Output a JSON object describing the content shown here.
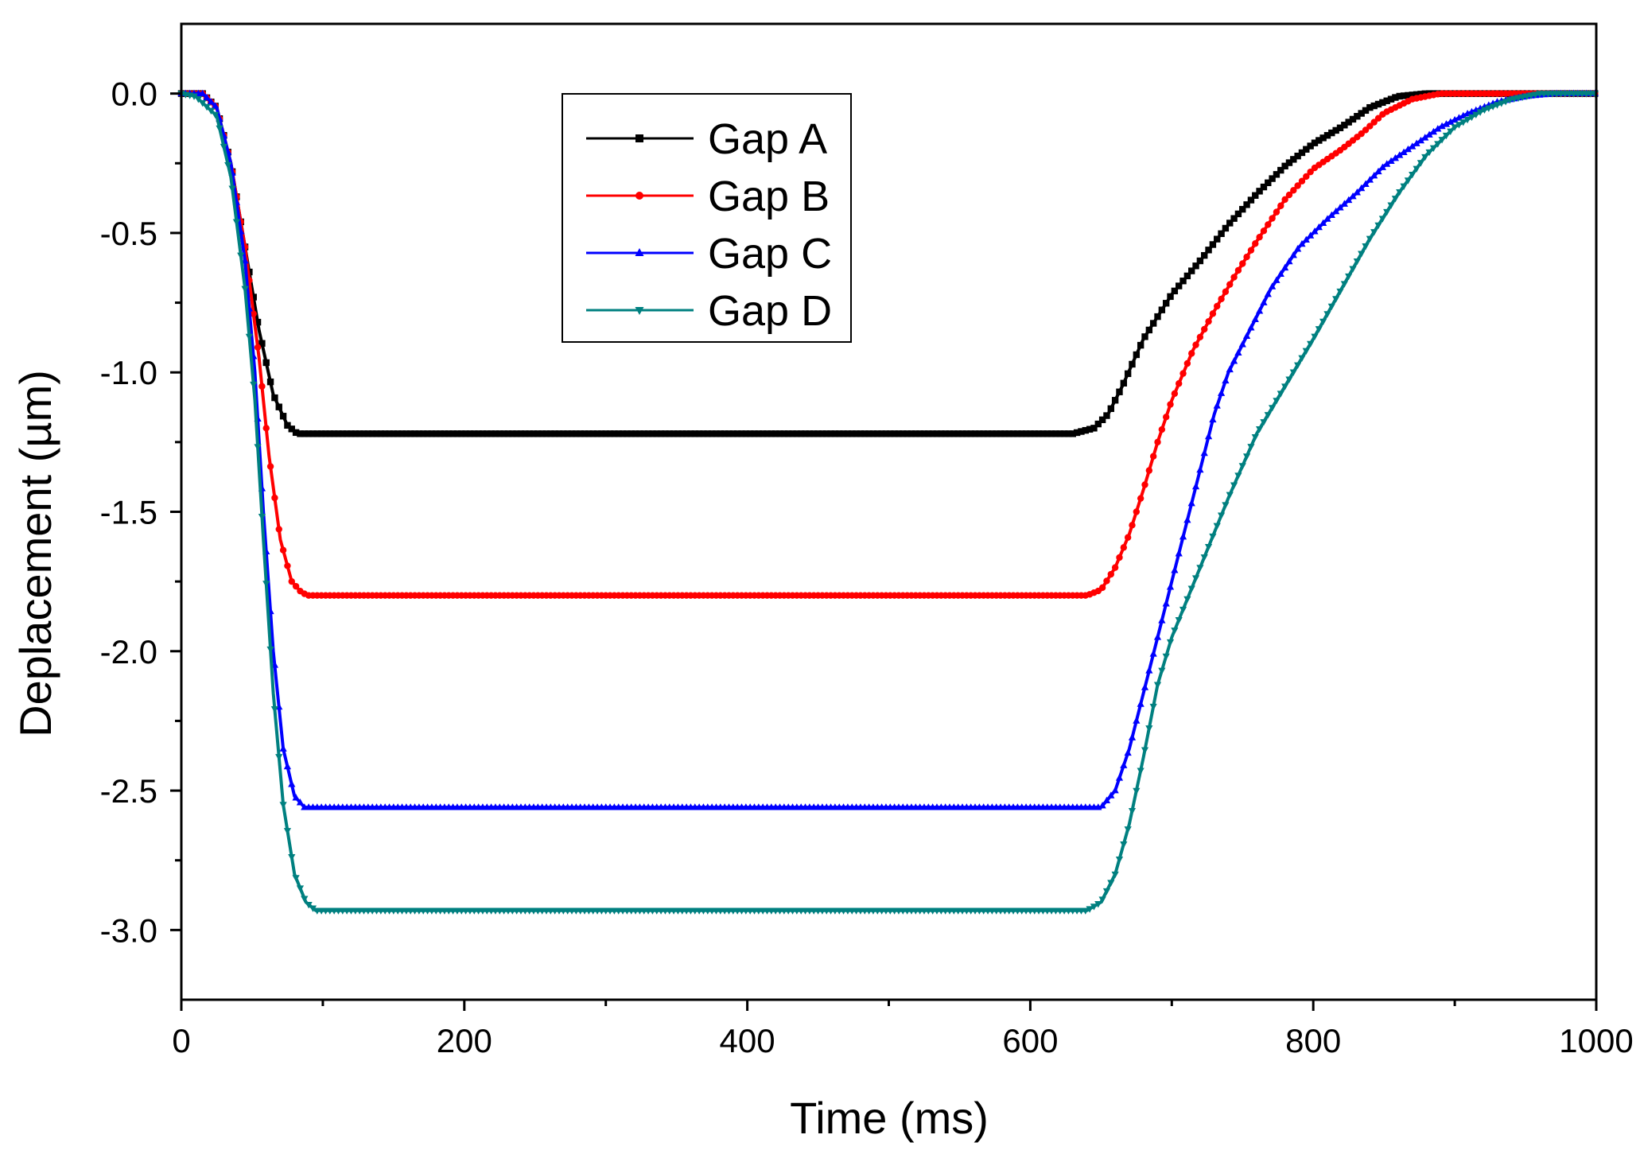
{
  "chart_data": {
    "type": "line",
    "title": "",
    "xlabel": "Time (ms)",
    "ylabel": "Deplacement (µm)",
    "xlim": [
      0,
      1000
    ],
    "ylim": [
      -3.25,
      0.25
    ],
    "x_ticks": [
      {
        "value": 0,
        "label": "0"
      },
      {
        "value": 200,
        "label": "200"
      },
      {
        "value": 400,
        "label": "400"
      },
      {
        "value": 600,
        "label": "600"
      },
      {
        "value": 800,
        "label": "800"
      },
      {
        "value": 1000,
        "label": "1000"
      }
    ],
    "y_ticks": [
      {
        "value": 0.0,
        "label": "0.0"
      },
      {
        "value": -0.5,
        "label": "-0.5"
      },
      {
        "value": -1.0,
        "label": "-1.0"
      },
      {
        "value": -1.5,
        "label": "-1.5"
      },
      {
        "value": -2.0,
        "label": "-2.0"
      },
      {
        "value": -2.5,
        "label": "-2.5"
      },
      {
        "value": -3.0,
        "label": "-3.0"
      }
    ],
    "x_minor_step": 100,
    "y_minor_step": 0.25,
    "grid": false,
    "legend_position": "upper-center",
    "series": [
      {
        "name": "Gap A",
        "color": "#000000",
        "marker": "square",
        "points": [
          [
            0,
            0
          ],
          [
            15,
            0
          ],
          [
            25,
            -0.05
          ],
          [
            35,
            -0.25
          ],
          [
            45,
            -0.55
          ],
          [
            55,
            -0.85
          ],
          [
            65,
            -1.08
          ],
          [
            75,
            -1.19
          ],
          [
            82,
            -1.22
          ],
          [
            100,
            -1.22
          ],
          [
            300,
            -1.22
          ],
          [
            500,
            -1.22
          ],
          [
            600,
            -1.22
          ],
          [
            630,
            -1.22
          ],
          [
            645,
            -1.2
          ],
          [
            655,
            -1.15
          ],
          [
            665,
            -1.05
          ],
          [
            680,
            -0.88
          ],
          [
            700,
            -0.72
          ],
          [
            720,
            -0.6
          ],
          [
            740,
            -0.47
          ],
          [
            760,
            -0.36
          ],
          [
            780,
            -0.26
          ],
          [
            800,
            -0.18
          ],
          [
            820,
            -0.12
          ],
          [
            840,
            -0.05
          ],
          [
            860,
            -0.01
          ],
          [
            880,
            0
          ],
          [
            1000,
            0
          ]
        ]
      },
      {
        "name": "Gap B",
        "color": "#ff0000",
        "marker": "circle",
        "points": [
          [
            0,
            0
          ],
          [
            15,
            0
          ],
          [
            25,
            -0.05
          ],
          [
            35,
            -0.25
          ],
          [
            45,
            -0.55
          ],
          [
            55,
            -0.95
          ],
          [
            62,
            -1.3
          ],
          [
            70,
            -1.6
          ],
          [
            78,
            -1.75
          ],
          [
            85,
            -1.79
          ],
          [
            90,
            -1.8
          ],
          [
            300,
            -1.8
          ],
          [
            500,
            -1.8
          ],
          [
            640,
            -1.8
          ],
          [
            650,
            -1.78
          ],
          [
            660,
            -1.7
          ],
          [
            670,
            -1.58
          ],
          [
            680,
            -1.42
          ],
          [
            690,
            -1.25
          ],
          [
            700,
            -1.1
          ],
          [
            715,
            -0.92
          ],
          [
            730,
            -0.78
          ],
          [
            745,
            -0.65
          ],
          [
            760,
            -0.53
          ],
          [
            780,
            -0.38
          ],
          [
            800,
            -0.27
          ],
          [
            820,
            -0.2
          ],
          [
            835,
            -0.14
          ],
          [
            850,
            -0.07
          ],
          [
            870,
            -0.02
          ],
          [
            890,
            0
          ],
          [
            1000,
            0
          ]
        ]
      },
      {
        "name": "Gap C",
        "color": "#0000ff",
        "marker": "triangle-up",
        "points": [
          [
            0,
            0
          ],
          [
            15,
            0
          ],
          [
            25,
            -0.05
          ],
          [
            35,
            -0.25
          ],
          [
            45,
            -0.6
          ],
          [
            52,
            -1.0
          ],
          [
            58,
            -1.5
          ],
          [
            65,
            -2.0
          ],
          [
            72,
            -2.35
          ],
          [
            80,
            -2.52
          ],
          [
            87,
            -2.56
          ],
          [
            95,
            -2.56
          ],
          [
            300,
            -2.56
          ],
          [
            500,
            -2.56
          ],
          [
            650,
            -2.56
          ],
          [
            660,
            -2.5
          ],
          [
            670,
            -2.35
          ],
          [
            680,
            -2.15
          ],
          [
            690,
            -1.95
          ],
          [
            700,
            -1.75
          ],
          [
            710,
            -1.55
          ],
          [
            720,
            -1.35
          ],
          [
            730,
            -1.15
          ],
          [
            740,
            -1.0
          ],
          [
            755,
            -0.85
          ],
          [
            770,
            -0.7
          ],
          [
            790,
            -0.55
          ],
          [
            810,
            -0.45
          ],
          [
            830,
            -0.36
          ],
          [
            850,
            -0.26
          ],
          [
            870,
            -0.19
          ],
          [
            890,
            -0.12
          ],
          [
            910,
            -0.07
          ],
          [
            930,
            -0.03
          ],
          [
            950,
            -0.01
          ],
          [
            970,
            0
          ],
          [
            1000,
            0
          ]
        ]
      },
      {
        "name": "Gap D",
        "color": "#008080",
        "marker": "triangle-down",
        "points": [
          [
            0,
            0
          ],
          [
            10,
            -0.01
          ],
          [
            25,
            -0.08
          ],
          [
            35,
            -0.3
          ],
          [
            45,
            -0.7
          ],
          [
            52,
            -1.1
          ],
          [
            58,
            -1.6
          ],
          [
            65,
            -2.15
          ],
          [
            72,
            -2.55
          ],
          [
            80,
            -2.8
          ],
          [
            88,
            -2.9
          ],
          [
            95,
            -2.93
          ],
          [
            300,
            -2.93
          ],
          [
            500,
            -2.93
          ],
          [
            640,
            -2.93
          ],
          [
            650,
            -2.9
          ],
          [
            660,
            -2.8
          ],
          [
            670,
            -2.62
          ],
          [
            680,
            -2.38
          ],
          [
            690,
            -2.12
          ],
          [
            700,
            -1.95
          ],
          [
            720,
            -1.7
          ],
          [
            740,
            -1.45
          ],
          [
            760,
            -1.22
          ],
          [
            780,
            -1.05
          ],
          [
            800,
            -0.88
          ],
          [
            820,
            -0.7
          ],
          [
            840,
            -0.52
          ],
          [
            860,
            -0.36
          ],
          [
            880,
            -0.22
          ],
          [
            900,
            -0.12
          ],
          [
            920,
            -0.06
          ],
          [
            940,
            -0.02
          ],
          [
            960,
            0
          ],
          [
            1000,
            0
          ]
        ]
      }
    ]
  }
}
